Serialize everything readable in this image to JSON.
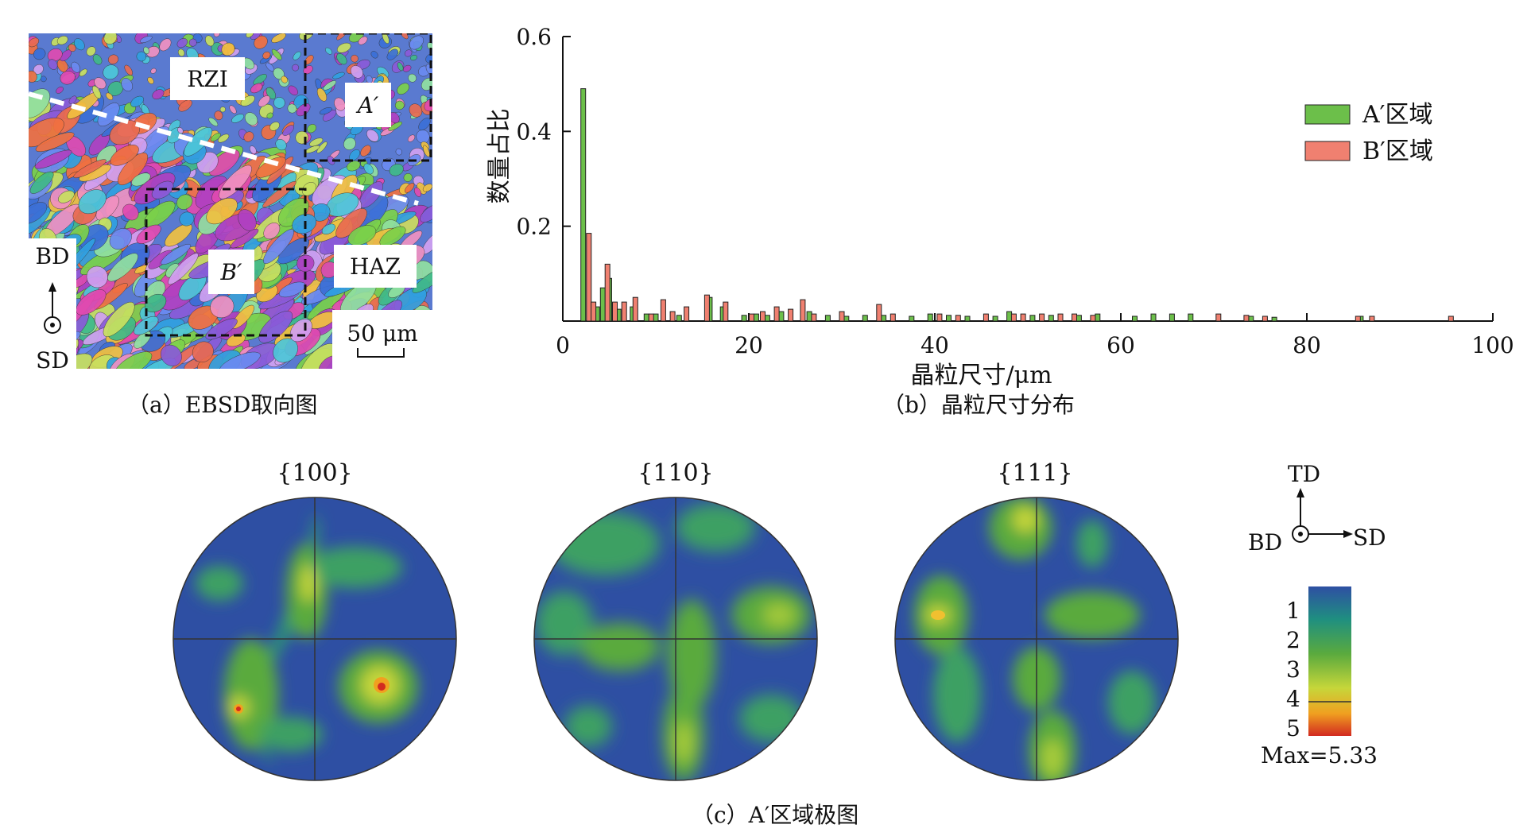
{
  "figure_a": {
    "caption": "（a）EBSD取向图",
    "labels": {
      "rzi": "RZI",
      "haz": "HAZ",
      "region_a": "A′",
      "region_b": "B′",
      "axis_bd": "BD",
      "axis_sd": "SD",
      "scale_bar": "50 μm"
    }
  },
  "figure_b": {
    "caption": "（b）晶粒尺寸分布",
    "chart_data": {
      "type": "bar",
      "xlabel": "晶粒尺寸/μm",
      "ylabel": "数量占比",
      "xlim": [
        0,
        100
      ],
      "ylim": [
        0,
        0.6
      ],
      "xticks": [
        0,
        20,
        40,
        60,
        80,
        100
      ],
      "yticks": [
        0.2,
        0.4,
        0.6
      ],
      "legend_position": "top-right",
      "series": [
        {
          "name": "A′区域",
          "color": "#6cbf4a",
          "points": [
            [
              2.2,
              0.49
            ],
            [
              3.7,
              0.03
            ],
            [
              4.3,
              0.07
            ],
            [
              5.0,
              0.09
            ],
            [
              6.0,
              0.025
            ],
            [
              7.5,
              0.03
            ],
            [
              9.0,
              0.015
            ],
            [
              10.0,
              0.015
            ],
            [
              12.5,
              0.012
            ],
            [
              15.8,
              0.05
            ],
            [
              17.2,
              0.03
            ],
            [
              19.5,
              0.012
            ],
            [
              20.8,
              0.015
            ],
            [
              22.0,
              0.012
            ],
            [
              23.5,
              0.02
            ],
            [
              26.5,
              0.02
            ],
            [
              28.5,
              0.012
            ],
            [
              30.5,
              0.01
            ],
            [
              32.5,
              0.012
            ],
            [
              34.5,
              0.012
            ],
            [
              37.5,
              0.01
            ],
            [
              39.5,
              0.015
            ],
            [
              41.5,
              0.012
            ],
            [
              43.5,
              0.01
            ],
            [
              46.5,
              0.01
            ],
            [
              48.0,
              0.02
            ],
            [
              50.5,
              0.012
            ],
            [
              52.5,
              0.012
            ],
            [
              55.5,
              0.012
            ],
            [
              57.5,
              0.015
            ],
            [
              61.5,
              0.01
            ],
            [
              63.5,
              0.015
            ],
            [
              65.5,
              0.015
            ],
            [
              67.5,
              0.015
            ],
            [
              74.0,
              0.01
            ],
            [
              76.5,
              0.008
            ],
            [
              85.8,
              0.01
            ]
          ]
        },
        {
          "name": "B′区域",
          "color": "#f08070",
          "points": [
            [
              2.8,
              0.185
            ],
            [
              3.3,
              0.04
            ],
            [
              4.8,
              0.12
            ],
            [
              5.6,
              0.04
            ],
            [
              6.6,
              0.04
            ],
            [
              7.8,
              0.05
            ],
            [
              9.5,
              0.015
            ],
            [
              10.8,
              0.045
            ],
            [
              11.8,
              0.02
            ],
            [
              13.3,
              0.03
            ],
            [
              15.5,
              0.055
            ],
            [
              17.5,
              0.04
            ],
            [
              20.3,
              0.015
            ],
            [
              21.5,
              0.02
            ],
            [
              23.0,
              0.03
            ],
            [
              24.5,
              0.025
            ],
            [
              25.8,
              0.045
            ],
            [
              27.0,
              0.015
            ],
            [
              30.0,
              0.02
            ],
            [
              34.0,
              0.035
            ],
            [
              35.5,
              0.015
            ],
            [
              40.5,
              0.015
            ],
            [
              42.5,
              0.012
            ],
            [
              45.5,
              0.015
            ],
            [
              48.5,
              0.015
            ],
            [
              49.5,
              0.015
            ],
            [
              51.5,
              0.015
            ],
            [
              53.5,
              0.015
            ],
            [
              55.0,
              0.015
            ],
            [
              57.0,
              0.012
            ],
            [
              70.5,
              0.015
            ],
            [
              73.5,
              0.012
            ],
            [
              75.5,
              0.01
            ],
            [
              85.5,
              0.01
            ],
            [
              87.0,
              0.01
            ],
            [
              95.5,
              0.01
            ]
          ]
        }
      ]
    }
  },
  "figure_c": {
    "caption": "（c）A′区域极图",
    "pole_figures": [
      {
        "title": "{100}"
      },
      {
        "title": "{110}"
      },
      {
        "title": "{111}"
      }
    ],
    "axes": {
      "td": "TD",
      "bd": "BD",
      "sd": "SD"
    },
    "colorbar": {
      "ticks": [
        "1",
        "2",
        "3",
        "4",
        "5"
      ],
      "max_label": "Max=5.33",
      "colors": [
        "#2e4fa3",
        "#1f8f80",
        "#5aaa3e",
        "#c6d63a",
        "#f0a020",
        "#d22a20"
      ]
    }
  }
}
